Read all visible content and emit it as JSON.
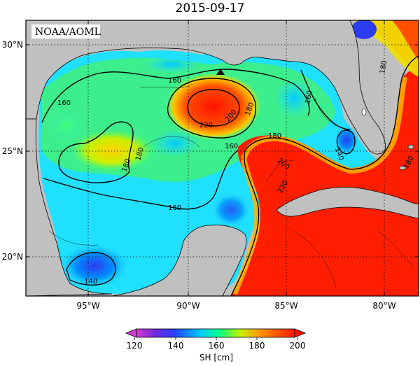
{
  "title": "2015-09-17",
  "credit": "NOAA/AOML",
  "y_ticks": [
    "30°N",
    "25°N",
    "20°N"
  ],
  "x_ticks": [
    "95°W",
    "90°W",
    "85°W",
    "80°W"
  ],
  "contour_labels": [
    "160",
    "160",
    "180",
    "220",
    "200",
    "160",
    "180",
    "180",
    "160",
    "180",
    "200",
    "220",
    "140",
    "180",
    "180",
    "160",
    "140"
  ],
  "colorbar": {
    "ticks": [
      "120",
      "140",
      "160",
      "180",
      "200"
    ],
    "label": "SH [cm]",
    "colors": [
      "#d23cd2",
      "#3c14dc",
      "#00c8ff",
      "#00ff8c",
      "#f0f000",
      "#ff8c00",
      "#ff1400"
    ]
  },
  "colors": {
    "land": "#c0c0c0",
    "warm": "#ff1e00",
    "cool": "#20e0ff"
  },
  "marker": "triangle"
}
